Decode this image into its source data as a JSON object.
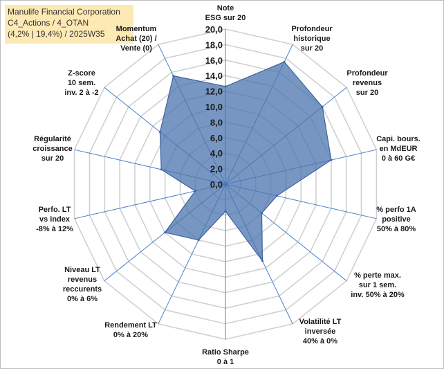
{
  "header": {
    "line1": "Manulife Financial Corporation",
    "line2": "C4_Actions / 4_OTAN",
    "line3": "(4,2% | 19,4%) / 2025W35"
  },
  "chart_data": {
    "type": "radar",
    "title": "",
    "radial_range": [
      0,
      20
    ],
    "tick_step": 2,
    "tick_labels": [
      "0,0",
      "2,0",
      "4,0",
      "6,0",
      "8,0",
      "10,0",
      "12,0",
      "14,0",
      "16,0",
      "18,0",
      "20,0"
    ],
    "grid": true,
    "axes": [
      {
        "label": [
          "Note",
          "ESG sur 20"
        ]
      },
      {
        "label": [
          "Profondeur",
          "historique",
          "sur 20"
        ]
      },
      {
        "label": [
          "Profondeur",
          "revenus",
          "sur 20"
        ]
      },
      {
        "label": [
          "Capi. bours.",
          "en MdEUR",
          "0 à 60 G€"
        ]
      },
      {
        "label": [
          "% perfo 1A",
          "positive",
          "50% à 80%"
        ]
      },
      {
        "label": [
          "% perte max.",
          "sur 1 sem.",
          "inv. 50% à 20%"
        ]
      },
      {
        "label": [
          "Volatilité LT",
          "inversée",
          "40% à 0%"
        ]
      },
      {
        "label": [
          "Ratio Sharpe",
          "0 à 1"
        ]
      },
      {
        "label": [
          "Rendement LT",
          "0% à 20%"
        ]
      },
      {
        "label": [
          "Niveau LT",
          "revenus",
          "reccurents",
          "0% à 6%"
        ]
      },
      {
        "label": [
          "Perfo. LT",
          "vs index",
          "-8% à 12%"
        ]
      },
      {
        "label": [
          "Régularité",
          "croissance",
          "sur 20"
        ]
      },
      {
        "label": [
          "Z-score",
          "10 sem.",
          "inv. 2 à -2"
        ]
      },
      {
        "label": [
          "Momentum",
          "Achat (20) /",
          "Vente (0)"
        ]
      }
    ],
    "series": [
      {
        "values": [
          12.6,
          17.5,
          16.0,
          14.0,
          6.8,
          6.0,
          11.0,
          3.5,
          8.0,
          10.0,
          4.0,
          8.5,
          10.8,
          15.5
        ]
      }
    ],
    "colors": {
      "fill": "#4a74ae",
      "stroke": "#3d63a0",
      "grid": "#d0d0d0",
      "spokes": "#4a7fc9"
    }
  }
}
